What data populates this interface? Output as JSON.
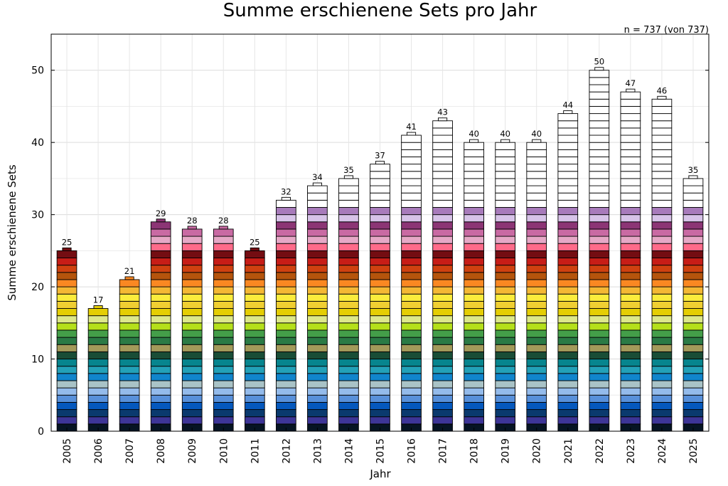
{
  "chart_data": {
    "type": "bar",
    "stacked": true,
    "title": "Summe erschienene Sets pro Jahr",
    "note": "n = 737 (von 737)",
    "xlabel": "Jahr",
    "ylabel": "Summe erschienene Sets",
    "ylim": [
      0,
      55
    ],
    "yticks": [
      0,
      10,
      20,
      30,
      40,
      50
    ],
    "grid": true,
    "categories": [
      "2005",
      "2006",
      "2007",
      "2008",
      "2009",
      "2010",
      "2011",
      "2012",
      "2013",
      "2014",
      "2015",
      "2016",
      "2017",
      "2018",
      "2019",
      "2020",
      "2021",
      "2022",
      "2023",
      "2024",
      "2025"
    ],
    "values": [
      25,
      17,
      21,
      29,
      28,
      28,
      25,
      32,
      34,
      35,
      37,
      41,
      43,
      40,
      40,
      40,
      44,
      50,
      47,
      46,
      35
    ],
    "stack_unit": 1,
    "segment_palette": [
      "#061423",
      "#3d3597",
      "#0a3a6e",
      "#0558bd",
      "#5890da",
      "#94bbeb",
      "#a9c3c7",
      "#1185cc",
      "#23a1b8",
      "#07858e",
      "#194d36",
      "#a39a5a",
      "#2a7a45",
      "#449e49",
      "#b5e01a",
      "#dde88a",
      "#e5ce04",
      "#f0cf32",
      "#fbec3c",
      "#f4b834",
      "#fa8822",
      "#b5540c",
      "#cf4110",
      "#c71d17",
      "#740d12",
      "#ff6b8a",
      "#e6a8c6",
      "#c96aa3",
      "#8c3575",
      "#d7c3e8",
      "#a87bbb",
      "#ffffff"
    ]
  }
}
